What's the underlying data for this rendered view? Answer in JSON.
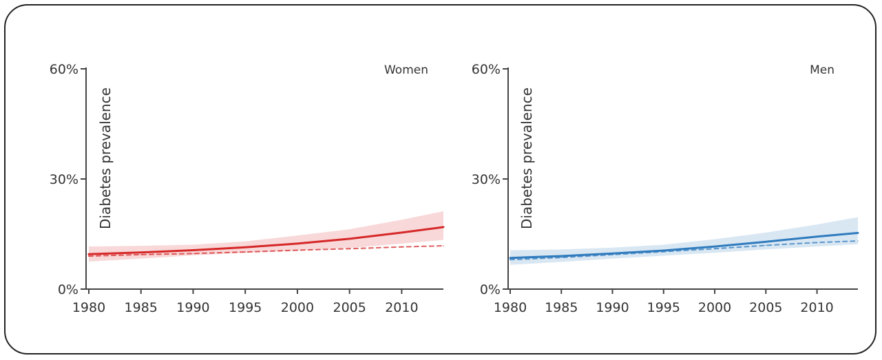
{
  "chart_data": [
    {
      "type": "line",
      "panel": "Women",
      "ylabel": "Diabetes prevalence",
      "xlim": [
        1980,
        2014
      ],
      "ylim": [
        0,
        60
      ],
      "x_ticks": [
        1980,
        1985,
        1990,
        1995,
        2000,
        2005,
        2010
      ],
      "y_ticks": [
        "0%",
        "30%",
        "60%"
      ],
      "y_tick_values": [
        0,
        30,
        60
      ],
      "grid": false,
      "series": [
        {
          "style": "solid",
          "color": "#d62728",
          "x": [
            1980,
            1985,
            1990,
            1995,
            2000,
            2005,
            2010,
            2014
          ],
          "values": [
            9.5,
            10.0,
            10.6,
            11.4,
            12.4,
            13.7,
            15.4,
            16.9
          ],
          "lower": [
            7.5,
            8.3,
            9.2,
            9.9,
            10.5,
            11.2,
            12.4,
            13.4
          ],
          "upper": [
            11.6,
            11.8,
            12.1,
            13.0,
            14.6,
            16.3,
            18.9,
            21.2
          ]
        },
        {
          "style": "dashed",
          "color": "#d62728",
          "x": [
            1980,
            1985,
            1990,
            1995,
            2000,
            2005,
            2010,
            2014
          ],
          "values": [
            9.0,
            9.4,
            9.7,
            10.1,
            10.6,
            11.0,
            11.5,
            11.8
          ]
        }
      ]
    },
    {
      "type": "line",
      "panel": "Men",
      "ylabel": "Diabetes prevalence",
      "xlim": [
        1980,
        2014
      ],
      "ylim": [
        0,
        60
      ],
      "x_ticks": [
        1980,
        1985,
        1990,
        1995,
        2000,
        2005,
        2010
      ],
      "y_ticks": [
        "0%",
        "30%",
        "60%"
      ],
      "y_tick_values": [
        0,
        30,
        60
      ],
      "grid": false,
      "series": [
        {
          "style": "solid",
          "color": "#2f7bbd",
          "x": [
            1980,
            1985,
            1990,
            1995,
            2000,
            2005,
            2010,
            2014
          ],
          "values": [
            8.5,
            9.0,
            9.7,
            10.5,
            11.6,
            12.9,
            14.3,
            15.3
          ],
          "lower": [
            6.6,
            7.4,
            8.3,
            9.1,
            9.9,
            10.8,
            11.6,
            12.2
          ],
          "upper": [
            10.6,
            10.8,
            11.3,
            12.1,
            13.6,
            15.4,
            17.6,
            19.6
          ]
        },
        {
          "style": "dashed",
          "color": "#2f7bbd",
          "x": [
            1980,
            1985,
            1990,
            1995,
            2000,
            2005,
            2010,
            2014
          ],
          "values": [
            8.0,
            8.6,
            9.4,
            10.2,
            11.0,
            11.9,
            12.7,
            13.1
          ]
        }
      ]
    }
  ]
}
